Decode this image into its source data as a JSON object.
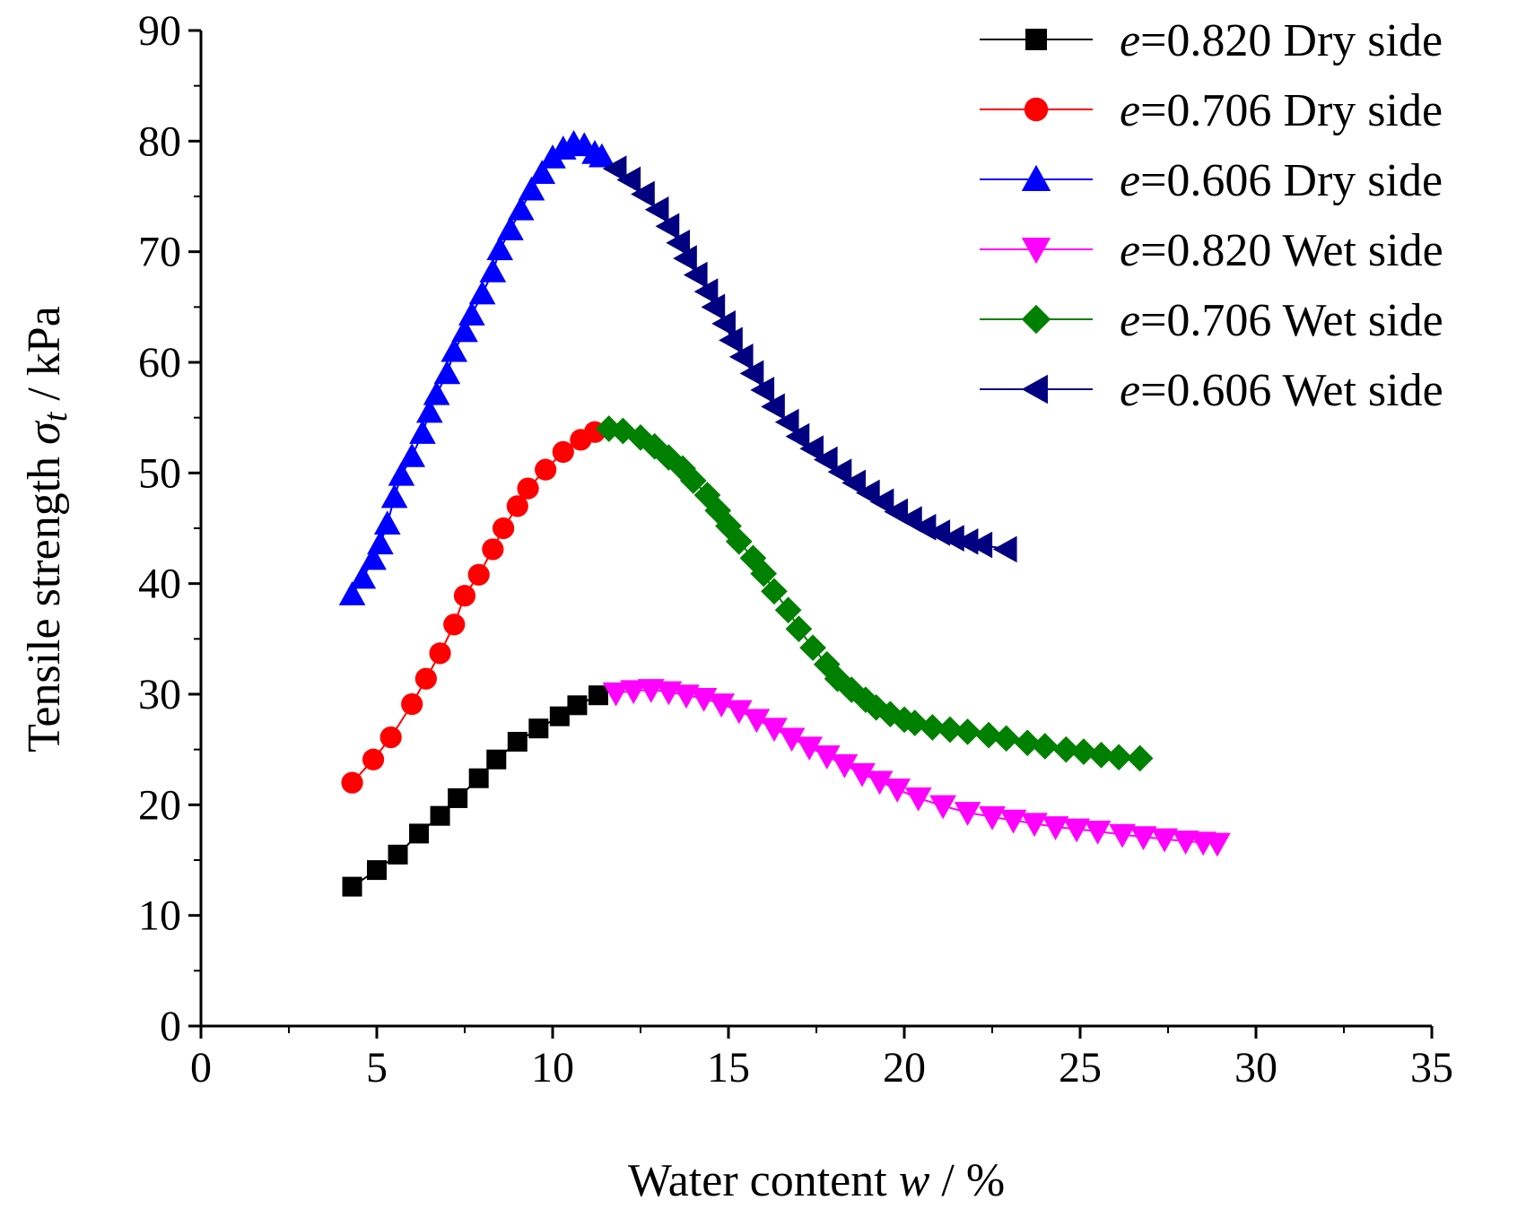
{
  "chart_data": {
    "type": "line",
    "xlabel": "Water content w / %",
    "xlabel_parts": {
      "before": "Water content ",
      "var": "w",
      "after": " / %"
    },
    "ylabel": "Tensile strength σt / kPa",
    "ylabel_parts": {
      "before": "Tensile strength ",
      "var": "σ",
      "sub": "t",
      "after": " / kPa"
    },
    "xlim": [
      0,
      35
    ],
    "ylim": [
      0,
      90
    ],
    "xticks": [
      0,
      5,
      10,
      15,
      20,
      25,
      30,
      35
    ],
    "yticks": [
      0,
      10,
      20,
      30,
      40,
      50,
      60,
      70,
      80,
      90
    ],
    "legend_position": "top-right",
    "series": [
      {
        "name": "e=0.820 Dry side",
        "label_var": "e",
        "label_rest": "=0.820 Dry side",
        "color": "#000000",
        "marker": "square",
        "x": [
          4.3,
          5.0,
          5.6,
          6.2,
          6.8,
          7.3,
          7.9,
          8.4,
          9.0,
          9.6,
          10.2,
          10.7,
          11.3
        ],
        "y": [
          12.6,
          14.1,
          15.5,
          17.4,
          19.0,
          20.6,
          22.4,
          24.1,
          25.7,
          26.9,
          28.0,
          29.0,
          29.9
        ]
      },
      {
        "name": "e=0.706 Dry side",
        "label_var": "e",
        "label_rest": "=0.706 Dry side",
        "color": "#ff0000",
        "marker": "circle",
        "x": [
          4.3,
          4.9,
          5.4,
          6.0,
          6.4,
          6.8,
          7.2,
          7.5,
          7.9,
          8.3,
          8.6,
          9.0,
          9.3,
          9.8,
          10.3,
          10.8,
          11.2
        ],
        "y": [
          22.0,
          24.1,
          26.1,
          29.1,
          31.4,
          33.7,
          36.3,
          38.9,
          40.8,
          43.1,
          45.0,
          47.0,
          48.6,
          50.3,
          51.9,
          53.0,
          53.7
        ]
      },
      {
        "name": "e=0.606 Dry side",
        "label_var": "e",
        "label_rest": "=0.606 Dry side",
        "color": "#0000ff",
        "marker": "triangle-up",
        "x": [
          4.3,
          4.6,
          4.9,
          5.1,
          5.3,
          5.5,
          5.7,
          6.0,
          6.3,
          6.5,
          6.7,
          7.0,
          7.2,
          7.5,
          7.7,
          8.0,
          8.3,
          8.5,
          8.8,
          9.1,
          9.4,
          9.7,
          10.0,
          10.3,
          10.6,
          10.9,
          11.2,
          11.4
        ],
        "y": [
          39.0,
          40.5,
          42.2,
          43.6,
          45.4,
          47.8,
          49.8,
          51.5,
          53.6,
          55.5,
          57.1,
          59.0,
          61.0,
          62.8,
          64.3,
          66.2,
          68.2,
          70.2,
          72.0,
          73.8,
          75.6,
          77.1,
          78.5,
          79.3,
          79.8,
          79.6,
          78.9,
          78.6
        ]
      },
      {
        "name": "e=0.820 Wet side",
        "label_var": "e",
        "label_rest": "=0.820 Wet side",
        "color": "#ff00ff",
        "marker": "triangle-down",
        "x": [
          11.8,
          12.3,
          12.8,
          13.3,
          13.8,
          14.3,
          14.8,
          15.3,
          15.8,
          16.3,
          16.8,
          17.3,
          17.8,
          18.3,
          18.8,
          19.3,
          19.8,
          20.4,
          21.1,
          21.8,
          22.5,
          23.1,
          23.7,
          24.3,
          24.9,
          25.5,
          26.2,
          26.8,
          27.4,
          28.0,
          28.5,
          28.9
        ],
        "y": [
          30.1,
          30.3,
          30.4,
          30.2,
          29.9,
          29.6,
          29.1,
          28.5,
          27.7,
          26.9,
          26.0,
          25.2,
          24.4,
          23.6,
          22.8,
          22.1,
          21.4,
          20.6,
          19.9,
          19.3,
          18.9,
          18.6,
          18.3,
          18.0,
          17.8,
          17.6,
          17.3,
          17.1,
          16.9,
          16.7,
          16.6,
          16.5
        ]
      },
      {
        "name": "e=0.706 Wet side",
        "label_var": "e",
        "label_rest": "=0.706 Wet side",
        "color": "#008000",
        "marker": "diamond",
        "x": [
          11.6,
          12.0,
          12.5,
          12.9,
          13.3,
          13.7,
          14.0,
          14.4,
          14.7,
          15.0,
          15.3,
          15.7,
          16.0,
          16.3,
          16.7,
          17.0,
          17.4,
          17.8,
          18.1,
          18.5,
          18.9,
          19.2,
          19.6,
          20.0,
          20.3,
          20.8,
          21.3,
          21.8,
          22.4,
          22.9,
          23.5,
          24.0,
          24.6,
          25.1,
          25.6,
          26.1,
          26.7
        ],
        "y": [
          54.0,
          53.8,
          53.2,
          52.4,
          51.4,
          50.4,
          49.3,
          48.0,
          46.6,
          45.2,
          43.8,
          42.3,
          40.9,
          39.3,
          37.6,
          35.9,
          34.2,
          32.7,
          31.4,
          30.4,
          29.5,
          28.8,
          28.2,
          27.7,
          27.4,
          27.0,
          26.8,
          26.6,
          26.3,
          26.0,
          25.6,
          25.3,
          25.0,
          24.8,
          24.5,
          24.3,
          24.2
        ]
      },
      {
        "name": "e=0.606 Wet side",
        "label_var": "e",
        "label_rest": "=0.606 Wet side",
        "color": "#000080",
        "marker": "triangle-left",
        "x": [
          11.8,
          12.2,
          12.6,
          13.0,
          13.3,
          13.6,
          13.8,
          14.1,
          14.4,
          14.6,
          14.9,
          15.1,
          15.4,
          15.7,
          16.0,
          16.3,
          16.7,
          17.0,
          17.4,
          17.8,
          18.2,
          18.6,
          19.0,
          19.4,
          19.8,
          20.2,
          20.6,
          21.0,
          21.4,
          21.8,
          22.2,
          22.9
        ],
        "y": [
          77.5,
          76.5,
          75.2,
          73.8,
          72.3,
          70.8,
          69.4,
          67.9,
          66.4,
          65.0,
          63.5,
          62.0,
          60.5,
          59.0,
          57.5,
          56.0,
          54.6,
          53.3,
          52.2,
          51.2,
          50.1,
          49.1,
          48.2,
          47.4,
          46.5,
          45.8,
          45.1,
          44.6,
          44.1,
          43.8,
          43.5,
          43.1
        ]
      }
    ]
  }
}
